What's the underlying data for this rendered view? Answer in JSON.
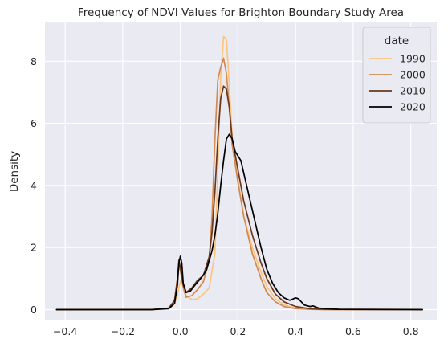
{
  "chart_data": {
    "type": "line",
    "title": "Frequency of NDVI Values for Brighton Boundary Study Area",
    "xlabel": "",
    "ylabel": "Density",
    "xlim": [
      -0.47,
      0.89
    ],
    "ylim": [
      -0.35,
      9.25
    ],
    "x_ticks": [
      -0.4,
      -0.2,
      0.0,
      0.2,
      0.4,
      0.6,
      0.8
    ],
    "x_tick_labels": [
      "−0.4",
      "−0.2",
      "0.0",
      "0.2",
      "0.4",
      "0.6",
      "0.8"
    ],
    "y_ticks": [
      0,
      2,
      4,
      6,
      8
    ],
    "y_tick_labels": [
      "0",
      "2",
      "4",
      "6",
      "8"
    ],
    "grid": true,
    "legend": {
      "title": "date",
      "placement": "top-right"
    },
    "series": [
      {
        "name": "1990",
        "color": "#fec47d",
        "points": [
          [
            -0.43,
            0
          ],
          [
            -0.1,
            0
          ],
          [
            -0.04,
            0.03
          ],
          [
            -0.02,
            0.2
          ],
          [
            -0.01,
            0.5
          ],
          [
            0.0,
            0.9
          ],
          [
            0.005,
            1.0
          ],
          [
            0.01,
            0.75
          ],
          [
            0.02,
            0.45
          ],
          [
            0.04,
            0.32
          ],
          [
            0.06,
            0.35
          ],
          [
            0.08,
            0.5
          ],
          [
            0.1,
            0.7
          ],
          [
            0.12,
            1.8
          ],
          [
            0.13,
            4.5
          ],
          [
            0.14,
            7.5
          ],
          [
            0.15,
            8.8
          ],
          [
            0.16,
            8.7
          ],
          [
            0.17,
            7.2
          ],
          [
            0.18,
            5.5
          ],
          [
            0.2,
            4.2
          ],
          [
            0.22,
            3.0
          ],
          [
            0.25,
            2.0
          ],
          [
            0.28,
            1.2
          ],
          [
            0.3,
            0.75
          ],
          [
            0.33,
            0.35
          ],
          [
            0.36,
            0.15
          ],
          [
            0.4,
            0.05
          ],
          [
            0.45,
            0.02
          ],
          [
            0.5,
            0
          ],
          [
            0.84,
            0
          ]
        ]
      },
      {
        "name": "2000",
        "color": "#d38a52",
        "points": [
          [
            -0.43,
            0
          ],
          [
            -0.1,
            0
          ],
          [
            -0.04,
            0.05
          ],
          [
            -0.02,
            0.3
          ],
          [
            -0.01,
            1.0
          ],
          [
            -0.005,
            1.5
          ],
          [
            0.0,
            1.25
          ],
          [
            0.01,
            0.7
          ],
          [
            0.02,
            0.4
          ],
          [
            0.04,
            0.45
          ],
          [
            0.06,
            0.65
          ],
          [
            0.08,
            0.9
          ],
          [
            0.1,
            1.6
          ],
          [
            0.11,
            3.0
          ],
          [
            0.12,
            5.5
          ],
          [
            0.13,
            7.4
          ],
          [
            0.14,
            7.8
          ],
          [
            0.15,
            8.1
          ],
          [
            0.16,
            7.6
          ],
          [
            0.17,
            6.5
          ],
          [
            0.18,
            5.3
          ],
          [
            0.2,
            4.1
          ],
          [
            0.22,
            3.0
          ],
          [
            0.25,
            1.8
          ],
          [
            0.28,
            1.0
          ],
          [
            0.3,
            0.55
          ],
          [
            0.33,
            0.25
          ],
          [
            0.36,
            0.1
          ],
          [
            0.4,
            0.03
          ],
          [
            0.45,
            0.01
          ],
          [
            0.5,
            0
          ],
          [
            0.84,
            0
          ]
        ]
      },
      {
        "name": "2010",
        "color": "#6b381e",
        "points": [
          [
            -0.43,
            0
          ],
          [
            -0.1,
            0
          ],
          [
            -0.04,
            0.05
          ],
          [
            -0.02,
            0.3
          ],
          [
            -0.01,
            1.0
          ],
          [
            -0.005,
            1.6
          ],
          [
            0.0,
            1.35
          ],
          [
            0.01,
            0.8
          ],
          [
            0.02,
            0.55
          ],
          [
            0.04,
            0.7
          ],
          [
            0.06,
            0.95
          ],
          [
            0.08,
            1.1
          ],
          [
            0.1,
            1.7
          ],
          [
            0.11,
            2.5
          ],
          [
            0.12,
            3.8
          ],
          [
            0.13,
            5.5
          ],
          [
            0.14,
            6.8
          ],
          [
            0.15,
            7.2
          ],
          [
            0.16,
            7.1
          ],
          [
            0.17,
            6.5
          ],
          [
            0.18,
            5.5
          ],
          [
            0.2,
            4.5
          ],
          [
            0.22,
            3.5
          ],
          [
            0.25,
            2.4
          ],
          [
            0.28,
            1.5
          ],
          [
            0.3,
            1.0
          ],
          [
            0.33,
            0.5
          ],
          [
            0.36,
            0.25
          ],
          [
            0.4,
            0.1
          ],
          [
            0.45,
            0.03
          ],
          [
            0.5,
            0.01
          ],
          [
            0.84,
            0
          ]
        ]
      },
      {
        "name": "2020",
        "color": "#000000",
        "points": [
          [
            -0.43,
            0
          ],
          [
            -0.1,
            0
          ],
          [
            -0.04,
            0.03
          ],
          [
            -0.02,
            0.2
          ],
          [
            -0.01,
            0.8
          ],
          [
            -0.005,
            1.5
          ],
          [
            0.0,
            1.72
          ],
          [
            0.005,
            1.5
          ],
          [
            0.01,
            0.85
          ],
          [
            0.02,
            0.55
          ],
          [
            0.035,
            0.6
          ],
          [
            0.05,
            0.78
          ],
          [
            0.07,
            1.0
          ],
          [
            0.09,
            1.25
          ],
          [
            0.11,
            1.9
          ],
          [
            0.12,
            2.4
          ],
          [
            0.13,
            3.1
          ],
          [
            0.14,
            4.0
          ],
          [
            0.15,
            4.8
          ],
          [
            0.16,
            5.5
          ],
          [
            0.17,
            5.65
          ],
          [
            0.18,
            5.5
          ],
          [
            0.19,
            5.1
          ],
          [
            0.2,
            4.95
          ],
          [
            0.21,
            4.8
          ],
          [
            0.22,
            4.4
          ],
          [
            0.24,
            3.6
          ],
          [
            0.26,
            2.8
          ],
          [
            0.28,
            2.0
          ],
          [
            0.3,
            1.3
          ],
          [
            0.32,
            0.85
          ],
          [
            0.34,
            0.55
          ],
          [
            0.36,
            0.38
          ],
          [
            0.38,
            0.3
          ],
          [
            0.4,
            0.38
          ],
          [
            0.41,
            0.35
          ],
          [
            0.43,
            0.15
          ],
          [
            0.45,
            0.1
          ],
          [
            0.46,
            0.12
          ],
          [
            0.48,
            0.05
          ],
          [
            0.55,
            0.01
          ],
          [
            0.84,
            0
          ]
        ]
      }
    ]
  }
}
